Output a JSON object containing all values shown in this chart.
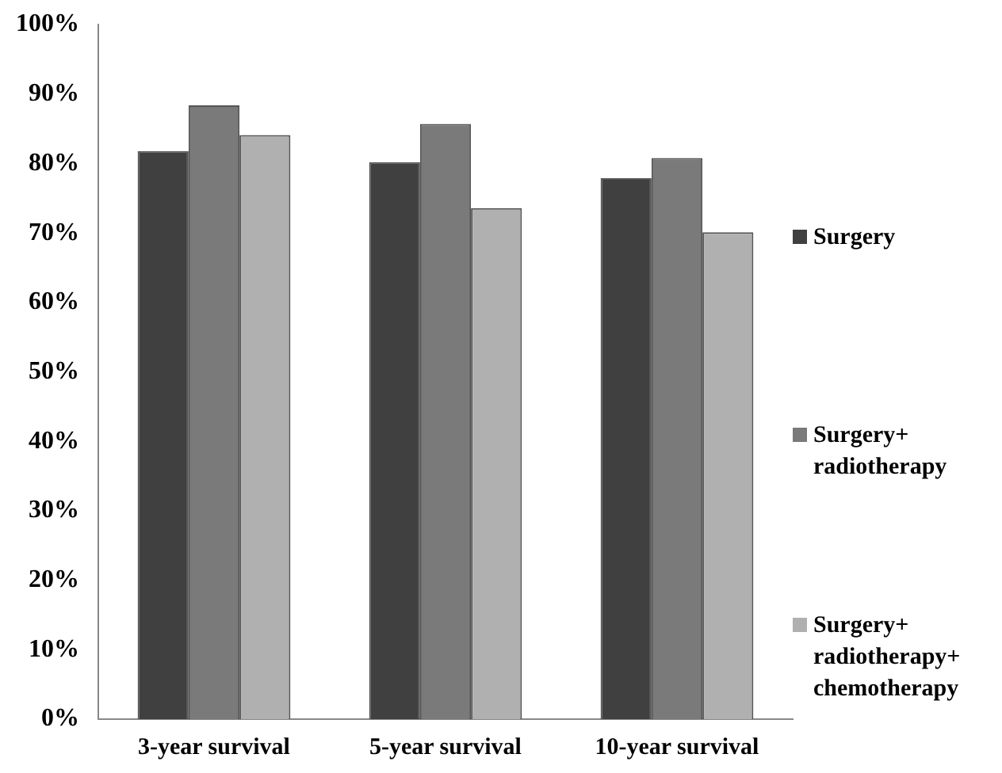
{
  "chart_data": {
    "type": "bar",
    "categories": [
      "3-year survival",
      "5-year survival",
      "10-year survival"
    ],
    "series": [
      {
        "name": "Surgery",
        "color": "#404040",
        "values": [
          81.8,
          80.2,
          77.9
        ]
      },
      {
        "name": "Surgery+radiotherapy",
        "color": "#7a7a7a",
        "values": [
          88.4,
          85.7,
          80.8
        ]
      },
      {
        "name": "Surgery+radiotherapy+chemotherapy",
        "color": "#b0b0b0",
        "values": [
          84.1,
          73.6,
          70.1
        ]
      }
    ],
    "ylim": [
      0,
      100
    ],
    "yticks": [
      {
        "value": 0,
        "label": "0%"
      },
      {
        "value": 10,
        "label": "10%"
      },
      {
        "value": 20,
        "label": "20%"
      },
      {
        "value": 30,
        "label": "30%"
      },
      {
        "value": 40,
        "label": "40%"
      },
      {
        "value": 50,
        "label": "50%"
      },
      {
        "value": 60,
        "label": "60%"
      },
      {
        "value": 70,
        "label": "70%"
      },
      {
        "value": 80,
        "label": "80%"
      },
      {
        "value": 90,
        "label": "90%"
      },
      {
        "value": 100,
        "label": "100%"
      }
    ],
    "grid": false,
    "legend": "right"
  }
}
